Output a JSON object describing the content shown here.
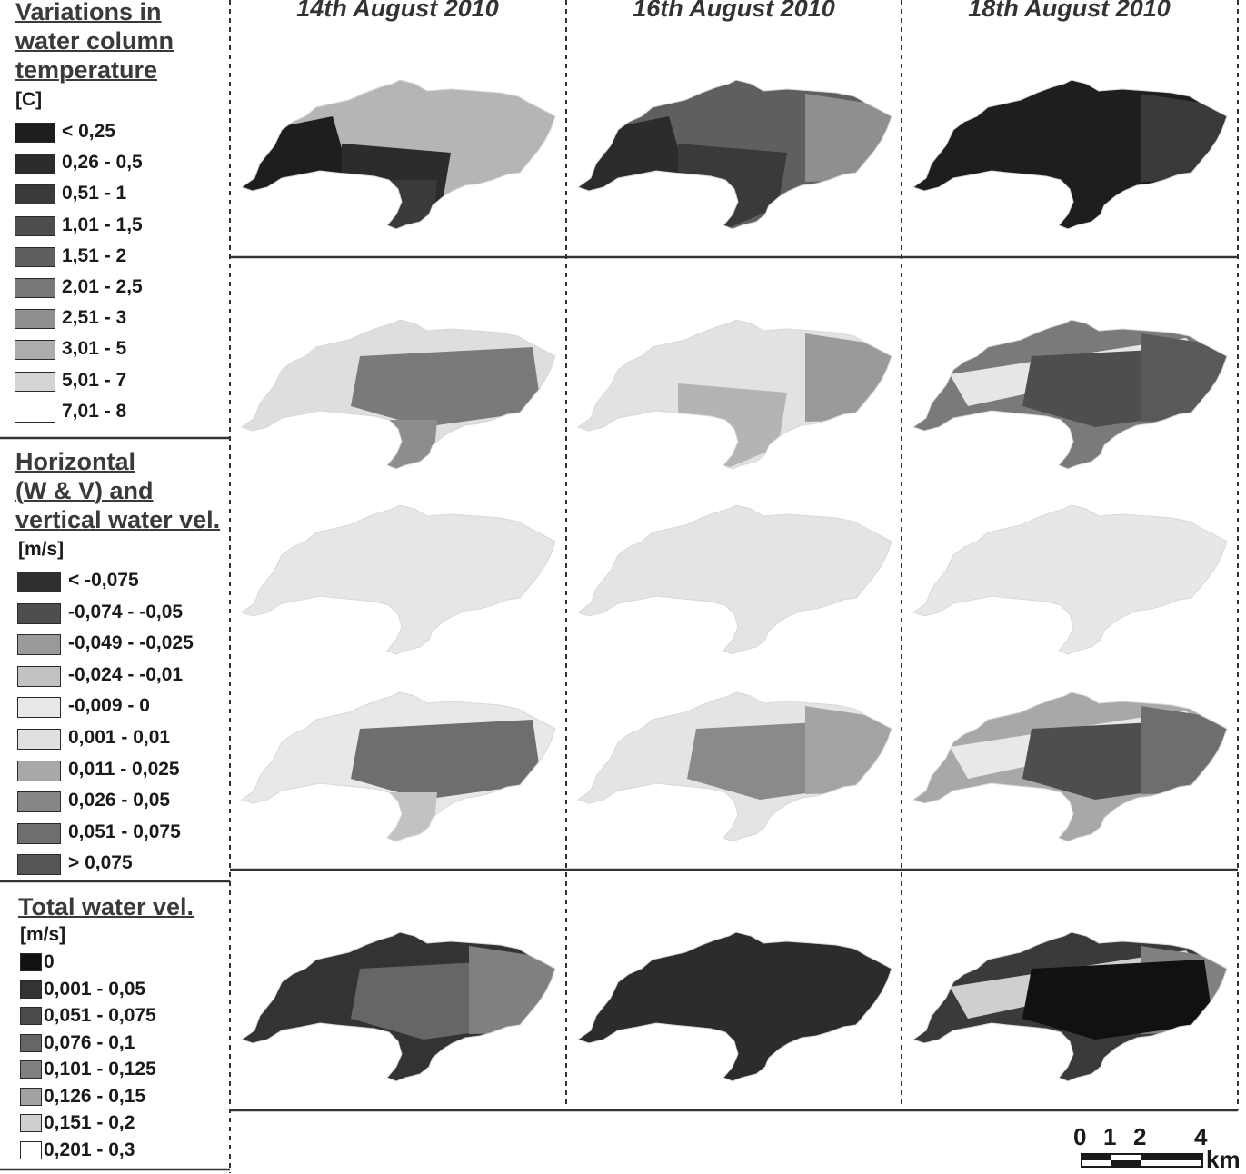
{
  "dates": [
    "14th August 2010",
    "16th August 2010",
    "18th August 2010"
  ],
  "temperature_legend": {
    "title_lines": [
      "Variations in",
      "water column",
      "temperature"
    ],
    "unit": "[C]",
    "items": [
      {
        "label": "< 0,25",
        "color": "#1e1e1e"
      },
      {
        "label": "0,26 - 0,5",
        "color": "#2c2c2c"
      },
      {
        "label": "0,51 - 1",
        "color": "#3a3a3a"
      },
      {
        "label": "1,01 - 1,5",
        "color": "#4d4d4d"
      },
      {
        "label": "1,51 - 2",
        "color": "#5f5f5f"
      },
      {
        "label": "2,01 - 2,5",
        "color": "#777777"
      },
      {
        "label": "2,51 - 3",
        "color": "#8f8f8f"
      },
      {
        "label": "3,01 - 5",
        "color": "#adadad"
      },
      {
        "label": "5,01 - 7",
        "color": "#d4d4d4"
      },
      {
        "label": "7,01 - 8",
        "color": "#ffffff"
      }
    ]
  },
  "velocity_legend": {
    "title_lines": [
      "Horizontal",
      "(W & V) and",
      "vertical water vel."
    ],
    "unit": "[m/s]",
    "items": [
      {
        "label": "< -0,075",
        "color": "#2f2f2f"
      },
      {
        "label": "-0,074 - -0,05",
        "color": "#4e4e4e"
      },
      {
        "label": "-0,049 - -0,025",
        "color": "#9a9a9a"
      },
      {
        "label": "-0,024 - -0,01",
        "color": "#c2c2c2"
      },
      {
        "label": "-0,009 - 0",
        "color": "#e8e8e8"
      },
      {
        "label": "0,001 - 0,01",
        "color": "#e0e0e0"
      },
      {
        "label": "0,011 - 0,025",
        "color": "#a8a8a8"
      },
      {
        "label": "0,026 - 0,05",
        "color": "#868686"
      },
      {
        "label": "0,051 - 0,075",
        "color": "#6e6e6e"
      },
      {
        "label": "> 0,075",
        "color": "#555555"
      }
    ]
  },
  "total_legend": {
    "title": "Total water vel.",
    "unit": "[m/s]",
    "items": [
      {
        "label": "0",
        "color": "#111111"
      },
      {
        "label": "0,001 - 0,05",
        "color": "#333333"
      },
      {
        "label": "0,051 - 0,075",
        "color": "#4b4b4b"
      },
      {
        "label": "0,076 - 0,1",
        "color": "#666666"
      },
      {
        "label": "0,101 - 0,125",
        "color": "#808080"
      },
      {
        "label": "0,126 - 0,15",
        "color": "#a2a2a2"
      },
      {
        "label": "0,151 - 0,2",
        "color": "#cfcfcf"
      },
      {
        "label": "0,201 - 0,3",
        "color": "#ffffff"
      }
    ]
  },
  "maps": {
    "temperature": [
      {
        "fill": "#b5b5b5",
        "patches": [
          {
            "color": "#1e1e1e",
            "part": "west"
          },
          {
            "color": "#2c2c2c",
            "part": "south"
          },
          {
            "color": "#3a3a3a",
            "part": "stem"
          }
        ]
      },
      {
        "fill": "#5f5f5f",
        "patches": [
          {
            "color": "#2c2c2c",
            "part": "west"
          },
          {
            "color": "#3a3a3a",
            "part": "south"
          },
          {
            "color": "#8f8f8f",
            "part": "east"
          }
        ]
      },
      {
        "fill": "#1e1e1e",
        "patches": [
          {
            "color": "#3a3a3a",
            "part": "east"
          }
        ]
      }
    ],
    "horizontal": [
      {
        "fill": "#dedede",
        "patches": [
          {
            "color": "#7a7a7a",
            "part": "core"
          },
          {
            "color": "#8d8d8d",
            "part": "stem"
          }
        ]
      },
      {
        "fill": "#e2e2e2",
        "patches": [
          {
            "color": "#9a9a9a",
            "part": "east"
          },
          {
            "color": "#b4b4b4",
            "part": "south"
          }
        ]
      },
      {
        "fill": "#7a7a7a",
        "patches": [
          {
            "color": "#e6e6e6",
            "part": "band"
          },
          {
            "color": "#4e4e4e",
            "part": "core"
          },
          {
            "color": "#5a5a5a",
            "part": "east"
          }
        ]
      }
    ],
    "vertical": [
      {
        "fill": "#e6e6e6",
        "patches": []
      },
      {
        "fill": "#e4e4e4",
        "patches": []
      },
      {
        "fill": "#e7e7e7",
        "patches": []
      }
    ],
    "vertical2": [
      {
        "fill": "#e8e8e8",
        "patches": [
          {
            "color": "#6e6e6e",
            "part": "core"
          },
          {
            "color": "#c2c2c2",
            "part": "stem"
          }
        ]
      },
      {
        "fill": "#e4e4e4",
        "patches": [
          {
            "color": "#8a8a8a",
            "part": "core"
          },
          {
            "color": "#a4a4a4",
            "part": "east"
          }
        ]
      },
      {
        "fill": "#a8a8a8",
        "patches": [
          {
            "color": "#e8e8e8",
            "part": "band"
          },
          {
            "color": "#4e4e4e",
            "part": "core"
          },
          {
            "color": "#6e6e6e",
            "part": "east"
          }
        ]
      }
    ],
    "total": [
      {
        "fill": "#333333",
        "patches": [
          {
            "color": "#666666",
            "part": "core"
          },
          {
            "color": "#808080",
            "part": "east"
          }
        ]
      },
      {
        "fill": "#2c2c2c",
        "patches": []
      },
      {
        "fill": "#3a3a3a",
        "patches": [
          {
            "color": "#cfcfcf",
            "part": "band"
          },
          {
            "color": "#808080",
            "part": "east"
          },
          {
            "color": "#111111",
            "part": "core"
          }
        ]
      }
    ]
  },
  "scale_bar": {
    "ticks": [
      "0",
      "1",
      "2",
      "4"
    ],
    "unit": "km"
  }
}
